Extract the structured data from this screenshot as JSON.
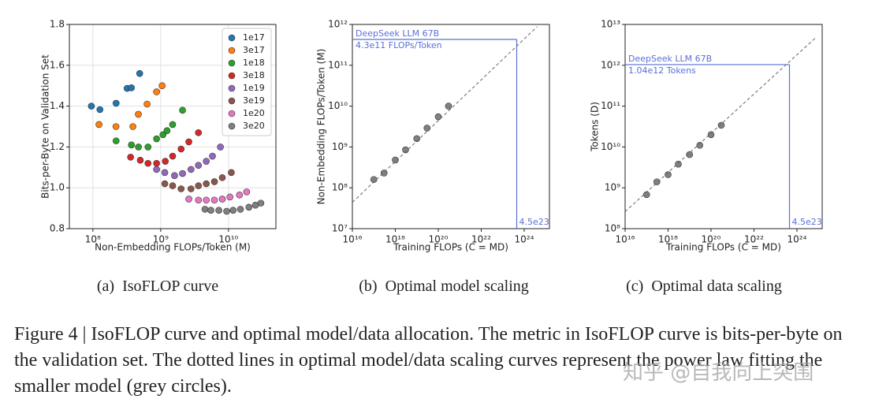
{
  "chart_data": [
    {
      "type": "scatter",
      "xscale": "log",
      "yscale": "linear",
      "grid": true,
      "legend": "upper right",
      "xlabel": "Non-Embedding FLOPs/Token (M)",
      "ylabel": "Bits-per-Byte on Validation Set",
      "xlim": [
        45000000.0,
        50000000000.0
      ],
      "ylim": [
        0.8,
        1.8
      ],
      "xticks": [
        {
          "value": 100000000.0,
          "label": "10⁸"
        },
        {
          "value": 1000000000.0,
          "label": "10⁹"
        },
        {
          "value": 10000000000.0,
          "label": "10¹⁰"
        }
      ],
      "yticks": [
        0.8,
        {
          "value": 1,
          "label": "1.0"
        },
        1.2,
        1.4,
        1.6,
        1.8
      ],
      "series": [
        {
          "name": "1e17",
          "color": "#1f77b4",
          "x": [
            95000000.0,
            127000000.0,
            220000000.0,
            320000000.0,
            370000000.0,
            490000000.0
          ],
          "values": [
            1.4,
            1.383,
            1.414,
            1.487,
            1.49,
            1.56
          ]
        },
        {
          "name": "3e17",
          "color": "#ff7f0e",
          "x": [
            123000000.0,
            219000000.0,
            389000000.0,
            468000000.0,
            630000000.0,
            870000000.0,
            1050000000.0
          ],
          "values": [
            1.31,
            1.3,
            1.3,
            1.36,
            1.41,
            1.47,
            1.5
          ]
        },
        {
          "name": "1e18",
          "color": "#2ca02c",
          "x": [
            220000000.0,
            370000000.0,
            470000000.0,
            650000000.0,
            870000000.0,
            1080000000.0,
            1240000000.0,
            1500000000.0,
            2100000000.0
          ],
          "values": [
            1.23,
            1.21,
            1.2,
            1.2,
            1.24,
            1.26,
            1.28,
            1.31,
            1.38
          ]
        },
        {
          "name": "3e18",
          "color": "#d62728",
          "x": [
            360000000.0,
            500000000.0,
            650000000.0,
            870000000.0,
            1170000000.0,
            1500000000.0,
            2000000000.0,
            2600000000.0,
            3600000000.0
          ],
          "values": [
            1.15,
            1.135,
            1.12,
            1.12,
            1.13,
            1.155,
            1.19,
            1.225,
            1.27
          ]
        },
        {
          "name": "1e19",
          "color": "#9467bd",
          "x": [
            870000000.0,
            1150000000.0,
            1600000000.0,
            2100000000.0,
            2800000000.0,
            3600000000.0,
            4700000000.0,
            5800000000.0,
            7600000000.0
          ],
          "values": [
            1.09,
            1.075,
            1.06,
            1.07,
            1.09,
            1.11,
            1.13,
            1.155,
            1.2
          ]
        },
        {
          "name": "3e19",
          "color": "#8c564b",
          "x": [
            1150000000.0,
            1500000000.0,
            2000000000.0,
            2800000000.0,
            3600000000.0,
            4700000000.0,
            6200000000.0,
            8100000000.0,
            11000000000.0
          ],
          "values": [
            1.02,
            1.01,
            0.995,
            0.995,
            1.01,
            1.02,
            1.03,
            1.05,
            1.075
          ]
        },
        {
          "name": "1e20",
          "color": "#e377c2",
          "x": [
            2600000000.0,
            3600000000.0,
            4700000000.0,
            6200000000.0,
            8100000000.0,
            10500000000.0,
            14500000000.0,
            18500000000.0
          ],
          "values": [
            0.945,
            0.94,
            0.94,
            0.94,
            0.945,
            0.955,
            0.965,
            0.98
          ]
        },
        {
          "name": "3e20",
          "color": "#7f7f7f",
          "x": [
            4500000000.0,
            5500000000.0,
            7200000000.0,
            9400000000.0,
            11700000000.0,
            15000000000.0,
            20000000000.0,
            25000000000.0,
            30000000000.0
          ],
          "values": [
            0.895,
            0.89,
            0.89,
            0.885,
            0.89,
            0.895,
            0.905,
            0.915,
            0.925
          ]
        }
      ]
    },
    {
      "type": "scatter",
      "xscale": "log",
      "yscale": "log",
      "grid": false,
      "xlabel": "Training FLOPs (C = MD)",
      "ylabel": "Non-Embedding FLOPs/Token (M)",
      "xlim": [
        1e+16,
        1.5e+25
      ],
      "ylim": [
        10000000.0,
        1000000000000.0
      ],
      "xticks": [
        {
          "value": 1e+16,
          "label": "10¹⁶"
        },
        {
          "value": 1e+18,
          "label": "10¹⁸"
        },
        {
          "value": 1e+20,
          "label": "10²⁰"
        },
        {
          "value": 1e+22,
          "label": "10²²"
        },
        {
          "value": 1e+24,
          "label": "10²⁴"
        }
      ],
      "yticks": [
        {
          "value": 10000000.0,
          "label": "10⁷"
        },
        {
          "value": 100000000.0,
          "label": "10⁸"
        },
        {
          "value": 1000000000.0,
          "label": "10⁹"
        },
        {
          "value": 10000000000.0,
          "label": "10¹⁰"
        },
        {
          "value": 100000000000.0,
          "label": "10¹¹"
        },
        {
          "value": 1000000000000.0,
          "label": "10¹²"
        }
      ],
      "series": [
        {
          "color": "#808080",
          "x": [
            1e+17,
            3e+17,
            1e+18,
            3e+18,
            1e+19,
            3e+19,
            1e+20,
            3e+20
          ],
          "values": [
            160000000.0,
            230000000.0,
            480000000.0,
            850000000.0,
            1600000000.0,
            2900000000.0,
            5500000000.0,
            10000000000.0
          ]
        },
        {
          "color": "#666666",
          "style": "dashed",
          "x": [
            1e+16,
            4e+24
          ],
          "values": [
            44000000.0,
            880000000000.0
          ]
        }
      ],
      "annotation": {
        "x": 4.5e+23,
        "y": 430000000000.0,
        "label": "DeepSeek LLM 67B",
        "y_label": "4.3e11 FLOPs/Token",
        "x_label": "4.5e23",
        "color": "#5b6fd6"
      }
    },
    {
      "type": "scatter",
      "xscale": "log",
      "yscale": "log",
      "grid": false,
      "xlabel": "Training FLOPs (C = MD)",
      "ylabel": "Tokens (D)",
      "xlim": [
        1e+16,
        1.5e+25
      ],
      "ylim": [
        100000000.0,
        10000000000000.0
      ],
      "xticks": [
        {
          "value": 1e+16,
          "label": "10¹⁶"
        },
        {
          "value": 1e+18,
          "label": "10¹⁸"
        },
        {
          "value": 1e+20,
          "label": "10²⁰"
        },
        {
          "value": 1e+22,
          "label": "10²²"
        },
        {
          "value": 1e+24,
          "label": "10²⁴"
        }
      ],
      "yticks": [
        {
          "value": 100000000.0,
          "label": "10⁸"
        },
        {
          "value": 1000000000.0,
          "label": "10⁹"
        },
        {
          "value": 10000000000.0,
          "label": "10¹⁰"
        },
        {
          "value": 100000000000.0,
          "label": "10¹¹"
        },
        {
          "value": 1000000000000.0,
          "label": "10¹²"
        },
        {
          "value": 10000000000000.0,
          "label": "10¹³"
        }
      ],
      "series": [
        {
          "color": "#808080",
          "x": [
            1e+17,
            3e+17,
            1e+18,
            3e+18,
            1e+19,
            3e+19,
            1e+20,
            3e+20
          ],
          "values": [
            680000000.0,
            1400000000.0,
            2100000000.0,
            3800000000.0,
            6500000000.0,
            11000000000.0,
            20000000000.0,
            34000000000.0
          ]
        },
        {
          "color": "#666666",
          "style": "dashed",
          "x": [
            1e+16,
            8e+24
          ],
          "values": [
            260000000.0,
            4900000000000.0
          ]
        }
      ],
      "annotation": {
        "x": 4.5e+23,
        "y": 1040000000000.0,
        "label": "DeepSeek LLM 67B",
        "y_label": "1.04e12 Tokens",
        "x_label": "4.5e23",
        "color": "#5b6fd6"
      }
    }
  ],
  "subcaptions": [
    "(a)  IsoFLOP curve",
    "(b)  Optimal model scaling",
    "(c)  Optimal data scaling"
  ],
  "caption": "Figure 4 | IsoFLOP curve and optimal model/data allocation. The metric in IsoFLOP curve is bits-per-byte on the validation set. The dotted lines in optimal model/data scaling curves represent the power law fitting the smaller model (grey circles).",
  "watermark": "知乎 @自我向上突围"
}
